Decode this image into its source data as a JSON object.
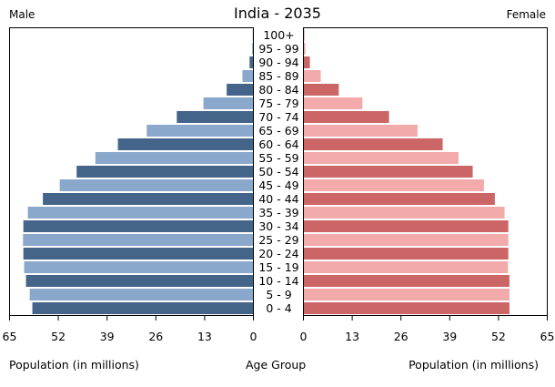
{
  "chart_data": {
    "type": "bar",
    "title": "India - 2035",
    "left_label": "Male",
    "right_label": "Female",
    "xlabel_left": "Population (in millions)",
    "xlabel_center": "Age Group",
    "xlabel_right": "Population (in millions)",
    "xlim": [
      0,
      65
    ],
    "ticks": [
      "0",
      "13",
      "26",
      "39",
      "52",
      "65"
    ],
    "categories": [
      "100+",
      "95 - 99",
      "90 - 94",
      "85 - 89",
      "80 - 84",
      "75 - 79",
      "70 - 74",
      "65 - 69",
      "60 - 64",
      "55 - 59",
      "50 - 54",
      "45 - 49",
      "40 - 44",
      "35 - 39",
      "30 - 34",
      "25 - 29",
      "20 - 24",
      "15 - 19",
      "10 - 14",
      "5 - 9",
      "0 - 4"
    ],
    "series": [
      {
        "name": "Male",
        "values": [
          0.05,
          0.2,
          0.9,
          2.8,
          7.0,
          13.2,
          20.3,
          28.3,
          36.0,
          42.0,
          47.0,
          51.5,
          56.0,
          60.0,
          61.2,
          61.3,
          61.2,
          61.0,
          60.5,
          59.5,
          58.8
        ]
      },
      {
        "name": "Female",
        "values": [
          0.1,
          0.4,
          1.6,
          4.5,
          9.3,
          15.6,
          22.7,
          30.3,
          37.0,
          41.2,
          45.0,
          48.0,
          50.9,
          53.5,
          54.5,
          54.5,
          54.5,
          54.4,
          54.8,
          54.8,
          54.8
        ]
      }
    ],
    "colors": {
      "male_dark": "#44648a",
      "male_light": "#8aa8cc",
      "female_dark": "#cc6666",
      "female_light": "#f2aaaa",
      "axis": "#000000"
    }
  }
}
